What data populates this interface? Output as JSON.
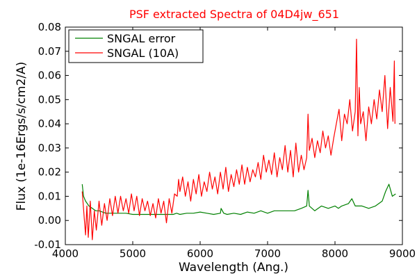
{
  "chart_data": {
    "type": "line",
    "title": "PSF extracted Spectra of 04D4jw_651",
    "xlabel": "Wavelength (Ang.)",
    "ylabel": "Flux (1e-16Ergs/s/cm2/A)",
    "xlim": [
      4000,
      9000
    ],
    "ylim": [
      -0.01,
      0.08
    ],
    "xticks": [
      4000,
      5000,
      6000,
      7000,
      8000,
      9000
    ],
    "xtick_labels": [
      "4000",
      "5000",
      "6000",
      "7000",
      "8000",
      "9000"
    ],
    "yticks": [
      -0.01,
      0.0,
      0.01,
      0.02,
      0.03,
      0.04,
      0.05,
      0.06,
      0.07,
      0.08
    ],
    "ytick_labels": [
      "-0.01",
      "0.00",
      "0.01",
      "0.02",
      "0.03",
      "0.04",
      "0.05",
      "0.06",
      "0.07",
      "0.08"
    ],
    "grid": false,
    "legend_position": "top-left",
    "series": [
      {
        "name": "SNGAL error",
        "color": "#008000",
        "x": [
          4250,
          4270,
          4300,
          4350,
          4400,
          4450,
          4500,
          4600,
          4700,
          4800,
          4900,
          5000,
          5100,
          5200,
          5300,
          5400,
          5500,
          5600,
          5650,
          5700,
          5800,
          5900,
          6000,
          6100,
          6200,
          6300,
          6310,
          6350,
          6400,
          6500,
          6600,
          6700,
          6800,
          6900,
          7000,
          7100,
          7200,
          7300,
          7400,
          7500,
          7580,
          7600,
          7620,
          7700,
          7800,
          7900,
          8000,
          8050,
          8100,
          8200,
          8250,
          8300,
          8400,
          8500,
          8600,
          8700,
          8750,
          8800,
          8850,
          8900
        ],
        "y": [
          0.015,
          0.01,
          0.008,
          0.006,
          0.005,
          0.004,
          0.004,
          0.003,
          0.003,
          0.003,
          0.003,
          0.0025,
          0.0025,
          0.0025,
          0.0025,
          0.0025,
          0.0025,
          0.0025,
          0.003,
          0.0025,
          0.003,
          0.003,
          0.0035,
          0.003,
          0.0025,
          0.003,
          0.005,
          0.003,
          0.0025,
          0.003,
          0.0025,
          0.0035,
          0.003,
          0.004,
          0.003,
          0.004,
          0.004,
          0.004,
          0.004,
          0.005,
          0.006,
          0.0125,
          0.006,
          0.004,
          0.006,
          0.005,
          0.006,
          0.005,
          0.006,
          0.007,
          0.009,
          0.006,
          0.006,
          0.005,
          0.006,
          0.008,
          0.012,
          0.015,
          0.01,
          0.011
        ]
      },
      {
        "name": "SNGAL (10A)",
        "color": "#ff0000",
        "x": [
          4250,
          4280,
          4300,
          4320,
          4340,
          4370,
          4400,
          4430,
          4460,
          4500,
          4540,
          4580,
          4620,
          4660,
          4700,
          4740,
          4780,
          4820,
          4860,
          4900,
          4940,
          4980,
          5020,
          5060,
          5100,
          5140,
          5180,
          5220,
          5260,
          5300,
          5340,
          5380,
          5420,
          5460,
          5500,
          5540,
          5580,
          5620,
          5660,
          5680,
          5700,
          5740,
          5780,
          5820,
          5860,
          5900,
          5940,
          5980,
          6020,
          6060,
          6100,
          6140,
          6180,
          6220,
          6260,
          6300,
          6340,
          6380,
          6420,
          6460,
          6500,
          6540,
          6580,
          6620,
          6660,
          6700,
          6740,
          6780,
          6820,
          6860,
          6900,
          6940,
          6980,
          7020,
          7060,
          7100,
          7140,
          7180,
          7220,
          7260,
          7300,
          7340,
          7380,
          7420,
          7460,
          7500,
          7540,
          7580,
          7600,
          7620,
          7660,
          7700,
          7740,
          7780,
          7820,
          7860,
          7900,
          7940,
          7980,
          8020,
          8060,
          8100,
          8140,
          8180,
          8220,
          8260,
          8300,
          8320,
          8340,
          8360,
          8380,
          8420,
          8460,
          8500,
          8540,
          8580,
          8620,
          8660,
          8700,
          8740,
          8780,
          8820,
          8860,
          8880,
          8890
        ],
        "y": [
          0.012,
          0.001,
          -0.006,
          0.006,
          -0.007,
          0.008,
          -0.008,
          0.004,
          -0.004,
          0.008,
          -0.002,
          0.007,
          0.0,
          0.009,
          0.002,
          0.01,
          0.003,
          0.01,
          0.004,
          0.009,
          0.003,
          0.011,
          0.004,
          0.01,
          0.002,
          0.009,
          0.004,
          0.008,
          0.002,
          0.007,
          0.001,
          0.009,
          0.003,
          0.008,
          -0.001,
          0.009,
          0.003,
          0.011,
          0.01,
          0.017,
          0.012,
          0.018,
          0.01,
          0.016,
          0.008,
          0.017,
          0.011,
          0.019,
          0.01,
          0.016,
          0.012,
          0.02,
          0.013,
          0.018,
          0.011,
          0.02,
          0.013,
          0.022,
          0.012,
          0.019,
          0.014,
          0.021,
          0.015,
          0.023,
          0.015,
          0.022,
          0.016,
          0.021,
          0.018,
          0.024,
          0.017,
          0.027,
          0.02,
          0.025,
          0.019,
          0.028,
          0.018,
          0.026,
          0.021,
          0.031,
          0.02,
          0.029,
          0.018,
          0.032,
          0.02,
          0.027,
          0.021,
          0.026,
          0.044,
          0.029,
          0.034,
          0.026,
          0.033,
          0.028,
          0.037,
          0.03,
          0.035,
          0.027,
          0.034,
          0.04,
          0.046,
          0.033,
          0.044,
          0.04,
          0.05,
          0.037,
          0.045,
          0.075,
          0.035,
          0.055,
          0.04,
          0.045,
          0.033,
          0.047,
          0.04,
          0.05,
          0.042,
          0.054,
          0.045,
          0.06,
          0.038,
          0.055,
          0.041,
          0.066,
          0.04
        ]
      }
    ]
  }
}
